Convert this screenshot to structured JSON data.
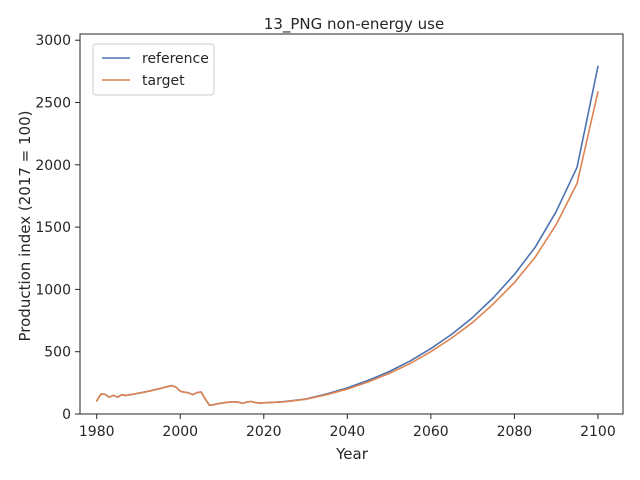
{
  "chart_data": {
    "type": "line",
    "title": "13_PNG non-energy use",
    "xlabel": "Year",
    "ylabel": "Production index (2017 = 100)",
    "xlim": [
      1976,
      2106
    ],
    "ylim": [
      0,
      3050
    ],
    "xticks": [
      1980,
      2000,
      2020,
      2040,
      2060,
      2080,
      2100
    ],
    "yticks": [
      0,
      500,
      1000,
      1500,
      2000,
      2500,
      3000
    ],
    "grid": false,
    "legend_position": "top-left",
    "series": [
      {
        "name": "reference",
        "color": "#4c72b0",
        "points": [
          [
            1980,
            105
          ],
          [
            1981,
            160
          ],
          [
            1982,
            158
          ],
          [
            1983,
            135
          ],
          [
            1984,
            150
          ],
          [
            1985,
            135
          ],
          [
            1986,
            155
          ],
          [
            1987,
            148
          ],
          [
            1988,
            155
          ],
          [
            1989,
            160
          ],
          [
            1990,
            167
          ],
          [
            1991,
            173
          ],
          [
            1992,
            180
          ],
          [
            1993,
            187
          ],
          [
            1994,
            195
          ],
          [
            1995,
            203
          ],
          [
            1996,
            212
          ],
          [
            1997,
            220
          ],
          [
            1998,
            228
          ],
          [
            1999,
            215
          ],
          [
            2000,
            183
          ],
          [
            2001,
            175
          ],
          [
            2002,
            170
          ],
          [
            2003,
            155
          ],
          [
            2004,
            172
          ],
          [
            2005,
            176
          ],
          [
            2006,
            120
          ],
          [
            2007,
            70
          ],
          [
            2008,
            75
          ],
          [
            2009,
            83
          ],
          [
            2010,
            88
          ],
          [
            2011,
            93
          ],
          [
            2012,
            96
          ],
          [
            2013,
            98
          ],
          [
            2014,
            94
          ],
          [
            2015,
            85
          ],
          [
            2016,
            97
          ],
          [
            2017,
            100
          ],
          [
            2018,
            92
          ],
          [
            2019,
            88
          ],
          [
            2020,
            90
          ],
          [
            2021,
            92
          ],
          [
            2022,
            93
          ],
          [
            2025,
            100
          ],
          [
            2030,
            120
          ],
          [
            2035,
            160
          ],
          [
            2040,
            210
          ],
          [
            2045,
            270
          ],
          [
            2050,
            340
          ],
          [
            2055,
            425
          ],
          [
            2060,
            525
          ],
          [
            2065,
            640
          ],
          [
            2070,
            775
          ],
          [
            2075,
            935
          ],
          [
            2080,
            1120
          ],
          [
            2085,
            1340
          ],
          [
            2090,
            1625
          ],
          [
            2095,
            1980
          ],
          [
            2100,
            2790
          ]
        ]
      },
      {
        "name": "target",
        "color": "#dd8452",
        "points": [
          [
            1980,
            105
          ],
          [
            1981,
            160
          ],
          [
            1982,
            158
          ],
          [
            1983,
            135
          ],
          [
            1984,
            150
          ],
          [
            1985,
            135
          ],
          [
            1986,
            155
          ],
          [
            1987,
            148
          ],
          [
            1988,
            155
          ],
          [
            1989,
            160
          ],
          [
            1990,
            167
          ],
          [
            1991,
            173
          ],
          [
            1992,
            180
          ],
          [
            1993,
            187
          ],
          [
            1994,
            195
          ],
          [
            1995,
            203
          ],
          [
            1996,
            212
          ],
          [
            1997,
            220
          ],
          [
            1998,
            228
          ],
          [
            1999,
            215
          ],
          [
            2000,
            183
          ],
          [
            2001,
            175
          ],
          [
            2002,
            170
          ],
          [
            2003,
            155
          ],
          [
            2004,
            172
          ],
          [
            2005,
            176
          ],
          [
            2006,
            120
          ],
          [
            2007,
            70
          ],
          [
            2008,
            75
          ],
          [
            2009,
            83
          ],
          [
            2010,
            88
          ],
          [
            2011,
            93
          ],
          [
            2012,
            96
          ],
          [
            2013,
            98
          ],
          [
            2014,
            94
          ],
          [
            2015,
            85
          ],
          [
            2016,
            97
          ],
          [
            2017,
            100
          ],
          [
            2018,
            92
          ],
          [
            2019,
            88
          ],
          [
            2020,
            90
          ],
          [
            2021,
            92
          ],
          [
            2022,
            93
          ],
          [
            2025,
            98
          ],
          [
            2030,
            118
          ],
          [
            2035,
            155
          ],
          [
            2040,
            200
          ],
          [
            2045,
            258
          ],
          [
            2050,
            325
          ],
          [
            2055,
            405
          ],
          [
            2060,
            500
          ],
          [
            2065,
            610
          ],
          [
            2070,
            735
          ],
          [
            2075,
            885
          ],
          [
            2080,
            1055
          ],
          [
            2085,
            1260
          ],
          [
            2090,
            1520
          ],
          [
            2095,
            1850
          ],
          [
            2100,
            2585
          ]
        ]
      }
    ]
  }
}
